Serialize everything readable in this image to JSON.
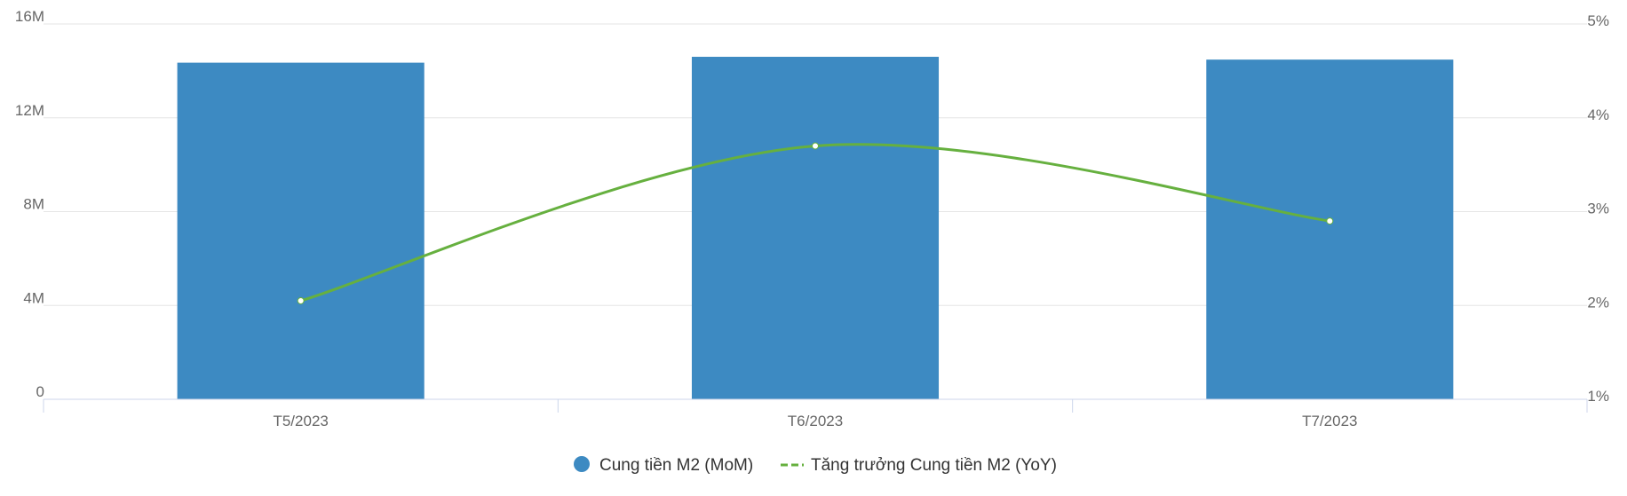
{
  "chart_data": {
    "type": "bar",
    "categories": [
      "T5/2023",
      "T6/2023",
      "T7/2023"
    ],
    "y_left": {
      "range": [
        0,
        16000000
      ],
      "ticks": [
        0,
        4000000,
        8000000,
        12000000,
        16000000
      ],
      "tick_labels": [
        "0",
        "4M",
        "8M",
        "12M",
        "16M"
      ]
    },
    "y_right": {
      "range": [
        1,
        5
      ],
      "ticks": [
        1,
        2,
        3,
        4,
        5
      ],
      "tick_labels": [
        "1%",
        "2%",
        "3%",
        "4%",
        "5%"
      ]
    },
    "series": [
      {
        "name": "Cung tiền M2 (MoM)",
        "type": "bar",
        "axis": "left",
        "color": "#3d8ac2",
        "values": [
          14350000,
          14600000,
          14480000
        ]
      },
      {
        "name": "Tăng trưởng Cung tiền M2 (YoY)",
        "type": "line",
        "axis": "right",
        "color": "#66b03f",
        "values": [
          2.05,
          3.7,
          2.9
        ]
      }
    ],
    "grid": true,
    "legend_position": "bottom-center"
  },
  "colors": {
    "grid": "#e6e6e6",
    "axis_line": "#ccd6eb",
    "tick_label": "#666666",
    "legend_text": "#333333"
  }
}
